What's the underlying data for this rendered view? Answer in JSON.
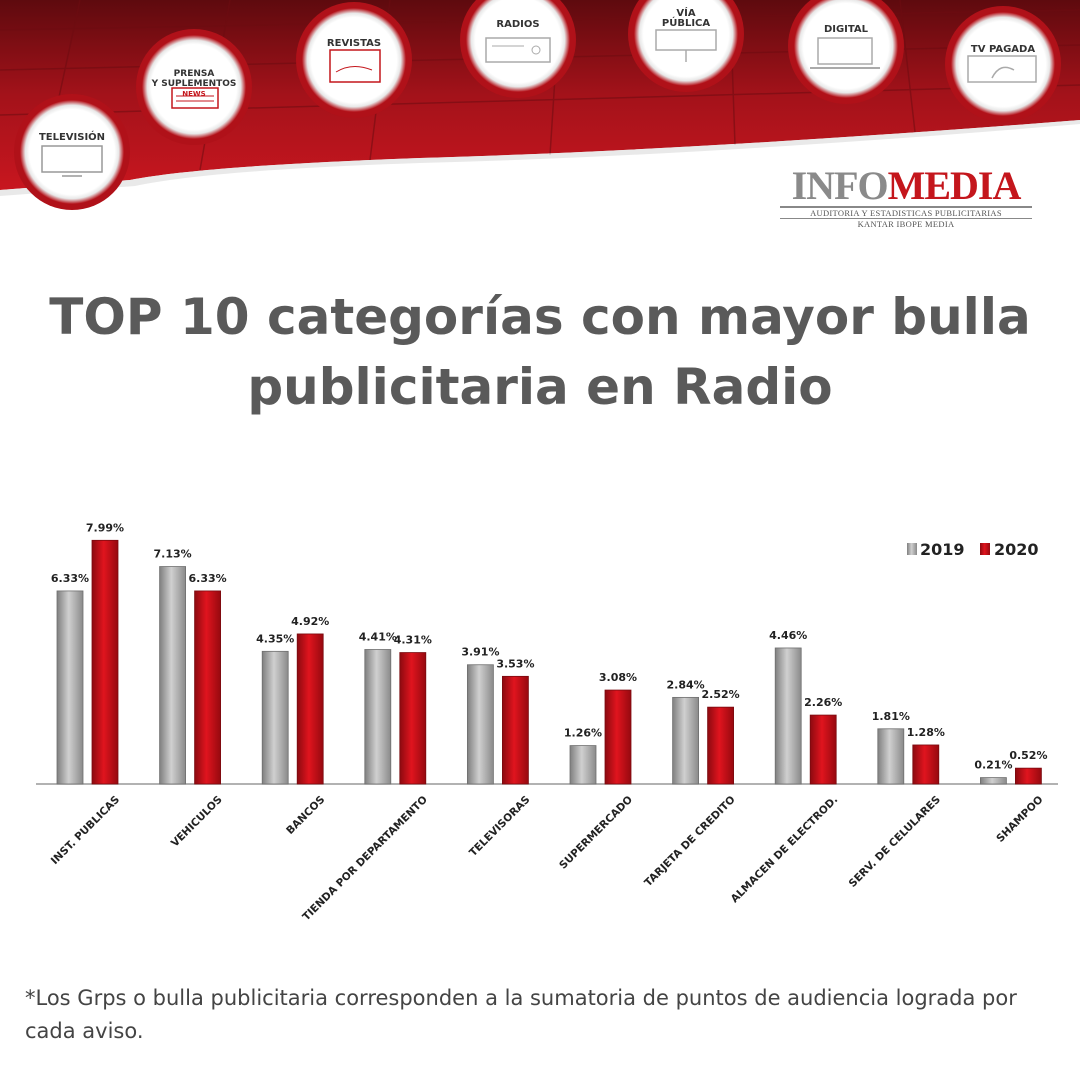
{
  "header": {
    "media_badges": [
      {
        "label": "TELEVISIÓN",
        "icon": "tv-icon"
      },
      {
        "label": "PRENSA\nY SUPLEMENTOS",
        "icon": "newspaper-icon",
        "tag": "NEWS"
      },
      {
        "label": "REVISTAS",
        "icon": "magazine-icon"
      },
      {
        "label": "RADIOS",
        "icon": "radio-icon"
      },
      {
        "label": "VÍA\nPÚBLICA",
        "icon": "billboard-icon"
      },
      {
        "label": "DIGITAL",
        "icon": "laptop-icon"
      },
      {
        "label": "TV PAGADA",
        "icon": "satellite-dish-icon"
      }
    ],
    "brand": {
      "logo_part1": "INFO",
      "logo_part2": "MEDIA",
      "tagline": "AUDITORIA Y ESTADISTICAS PUBLICITARIAS",
      "subtagline": "KANTAR IBOPE MEDIA"
    }
  },
  "title": "TOP 10 categorías con mayor bulla publicitaria en Radio",
  "chart_data": {
    "type": "bar",
    "categories": [
      "INST. PUBLICAS",
      "VEHICULOS",
      "BANCOS",
      "TIENDA POR DEPARTAMENTO",
      "TELEVISORAS",
      "SUPERMERCADO",
      "TARJETA DE CREDITO",
      "ALMACEN DE ELECTROD.",
      "SERV. DE CELULARES",
      "SHAMPOO"
    ],
    "series": [
      {
        "name": "2019",
        "values": [
          6.33,
          7.13,
          4.35,
          4.41,
          3.91,
          1.26,
          2.84,
          4.46,
          1.81,
          0.21
        ],
        "labels": [
          "6.33%",
          "7.13%",
          "4.35%",
          "4.41%",
          "3.91%",
          "1.26%",
          "2.84%",
          "4.46%",
          "1.81%",
          "0.21%"
        ]
      },
      {
        "name": "2020",
        "values": [
          7.99,
          6.33,
          4.92,
          4.31,
          3.53,
          3.08,
          2.52,
          2.26,
          1.28,
          0.52
        ],
        "labels": [
          "7.99%",
          "6.33%",
          "4.92%",
          "4.31%",
          "3.53%",
          "3.08%",
          "2.52%",
          "2.26%",
          "1.28%",
          "0.52%"
        ]
      }
    ],
    "ylim": [
      0,
      8
    ],
    "legend": "top-right",
    "grid": false,
    "colors": {
      "2019": "#a9a9a9",
      "2020": "#d0101b"
    }
  },
  "footnote": "*Los Grps o bulla publicitaria corresponden a la sumatoria de puntos de audiencia lograda por cada aviso."
}
